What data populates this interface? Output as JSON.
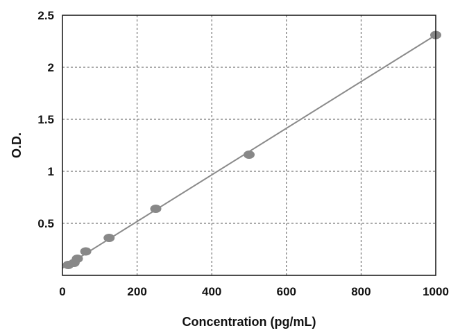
{
  "chart_data": {
    "type": "scatter",
    "xlabel": "Concentration (pg/mL)",
    "ylabel": "O.D.",
    "xlim": [
      0,
      1000
    ],
    "ylim": [
      0,
      2.5
    ],
    "x_ticks": [
      "0",
      "200",
      "400",
      "600",
      "800",
      "1000"
    ],
    "y_ticks": [
      "0.5",
      "1",
      "1.5",
      "2",
      "2.5"
    ],
    "grid": true,
    "grid_style": "dotted",
    "series": [
      {
        "x": [
          15.6,
          31.25,
          40,
          62.5,
          125,
          250,
          500,
          1000
        ],
        "y": [
          0.1,
          0.12,
          0.16,
          0.23,
          0.36,
          0.64,
          1.16,
          2.31
        ]
      }
    ],
    "trendline": {
      "x": [
        0,
        1000
      ],
      "y": [
        0.07,
        2.31
      ]
    },
    "colors": {
      "marker": "#888888",
      "line": "#8a8a8a",
      "grid": "#555555",
      "frame": "#111111"
    }
  }
}
